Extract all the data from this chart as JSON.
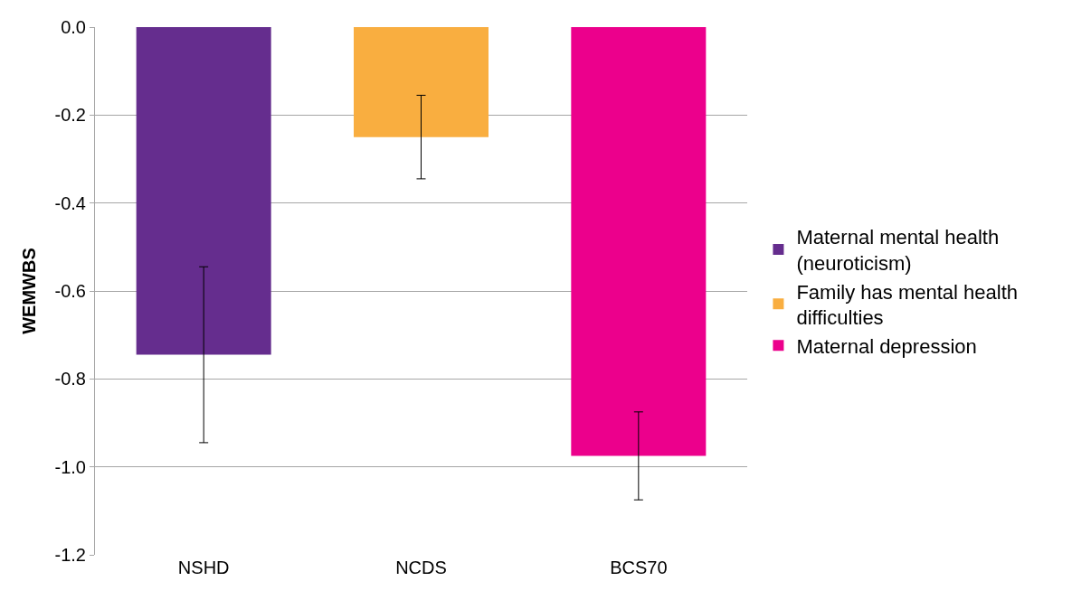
{
  "chart_data": {
    "type": "bar",
    "ylabel": "WEMWBS",
    "categories": [
      "NSHD",
      "NCDS",
      "BCS70"
    ],
    "series": [
      {
        "name": "Maternal mental health (neuroticism)",
        "color": "#652d8e",
        "values": [
          -0.745,
          null,
          null
        ],
        "errors": [
          0.2,
          null,
          null
        ]
      },
      {
        "name": "Family has mental health difficulties",
        "color": "#f9ae40",
        "values": [
          null,
          -0.25,
          null
        ],
        "errors": [
          null,
          0.095,
          null
        ]
      },
      {
        "name": "Maternal depression",
        "color": "#ec008c",
        "values": [
          null,
          null,
          -0.975
        ],
        "errors": [
          null,
          null,
          0.1
        ]
      }
    ],
    "ylim": [
      -1.2,
      0
    ],
    "yticks": [
      {
        "value": -1.2,
        "label": "-1.2"
      },
      {
        "value": -1.0,
        "label": "-1.0"
      },
      {
        "value": -0.8,
        "label": "-0.8"
      },
      {
        "value": -0.6,
        "label": "-0.6"
      },
      {
        "value": -0.4,
        "label": "-0.4"
      },
      {
        "value": -0.2,
        "label": "-0.2"
      },
      {
        "value": 0,
        "label": "0.0"
      }
    ],
    "grid": "y",
    "legend": "right"
  }
}
